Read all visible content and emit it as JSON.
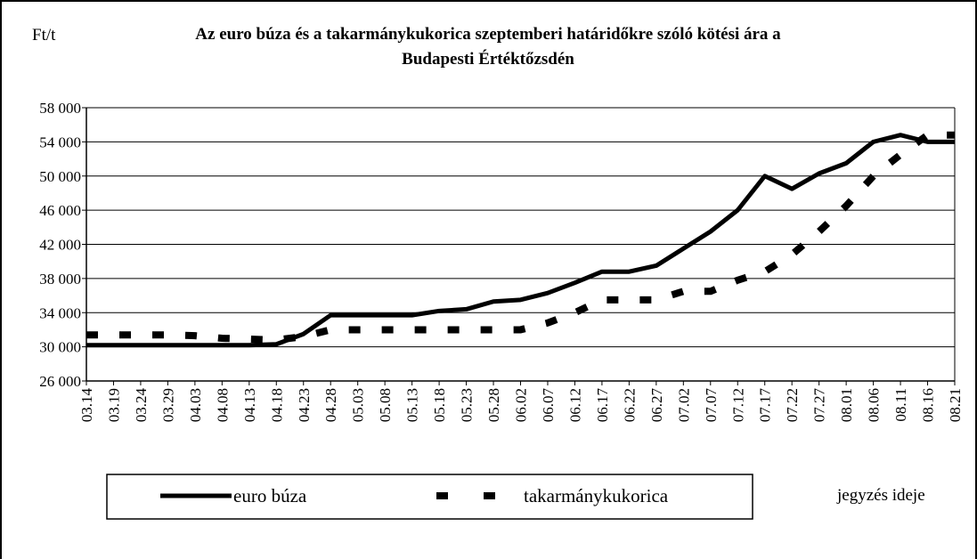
{
  "chart_data": {
    "type": "line",
    "title": [
      "Az euro búza és a takarmánykukorica szeptemberi határidőkre szóló kötési ára a",
      "Budapesti Értéktőzsdén"
    ],
    "y_label": "Ft/t",
    "x_label": "jegyzés ideje",
    "categories": [
      "03.14",
      "03.19",
      "03.24",
      "03.29",
      "04.03",
      "04.08",
      "04.13",
      "04.18",
      "04.23",
      "04.28",
      "05.03",
      "05.08",
      "05.13",
      "05.18",
      "05.23",
      "05.28",
      "06.02",
      "06.07",
      "06.12",
      "06.17",
      "06.22",
      "06.27",
      "07.02",
      "07.07",
      "07.12",
      "07.17",
      "07.22",
      "07.27",
      "08.01",
      "08.06",
      "08.11",
      "08.16",
      "08.21"
    ],
    "series": [
      {
        "name": "euro búza",
        "color": "#000000",
        "style": "solid",
        "values": [
          30200,
          30200,
          30200,
          30200,
          30200,
          30200,
          30200,
          30300,
          31500,
          33700,
          33700,
          33700,
          33700,
          34200,
          34400,
          35300,
          35500,
          36300,
          37500,
          38800,
          38800,
          39500,
          41500,
          43500,
          46000,
          50000,
          48500,
          50300,
          51500,
          54000,
          54800,
          54000,
          54000
        ]
      },
      {
        "name": "takarmánykukorica",
        "color": "#000000",
        "style": "dashed",
        "values": [
          31400,
          31400,
          31400,
          31400,
          31300,
          31000,
          30900,
          30800,
          31200,
          32000,
          32000,
          32000,
          32000,
          32000,
          32000,
          32000,
          32000,
          32800,
          34000,
          35500,
          35500,
          35500,
          36500,
          36500,
          37800,
          38800,
          40800,
          43500,
          46500,
          50000,
          52500,
          54800,
          54800
        ]
      }
    ],
    "ylim": [
      26000,
      58000
    ],
    "yticks": [
      {
        "value": 26000,
        "label": "26 000"
      },
      {
        "value": 30000,
        "label": "30 000"
      },
      {
        "value": 34000,
        "label": "34 000"
      },
      {
        "value": 38000,
        "label": "38 000"
      },
      {
        "value": 42000,
        "label": "42 000"
      },
      {
        "value": 46000,
        "label": "46 000"
      },
      {
        "value": 50000,
        "label": "50 000"
      },
      {
        "value": 54000,
        "label": "54 000"
      },
      {
        "value": 58000,
        "label": "58 000"
      }
    ],
    "grid": true
  }
}
